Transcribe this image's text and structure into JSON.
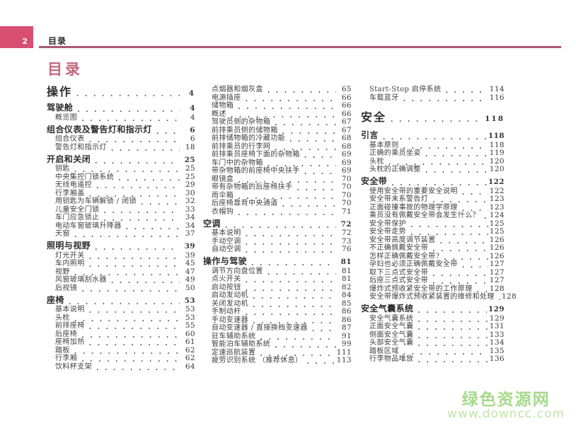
{
  "header": {
    "tab_page_number": "2",
    "header_label": "目录",
    "page_title": "目录"
  },
  "colors": {
    "accent": "#d84f72",
    "rule": "#a85a73",
    "title_pink": "#c4677f",
    "watermark_green": "#a6d98b",
    "watermark_green_light": "#bfe5a8"
  },
  "toc": {
    "columns": [
      {
        "entries": [
          {
            "label": "操作",
            "page": "4",
            "level": "part"
          },
          {
            "label": "驾驶舱",
            "page": "4",
            "level": "section"
          },
          {
            "label": "概览图",
            "page": "4",
            "level": "sub"
          },
          {
            "label": "组合仪表及警告灯和指示灯",
            "page": "6",
            "level": "section"
          },
          {
            "label": "组合仪表",
            "page": "6",
            "level": "sub"
          },
          {
            "label": "警告灯和指示灯",
            "page": "18",
            "level": "sub"
          },
          {
            "label": "开启和关闭",
            "page": "25",
            "level": "section"
          },
          {
            "label": "钥匙",
            "page": "25",
            "level": "sub"
          },
          {
            "label": "中央集控门锁系统",
            "page": "25",
            "level": "sub"
          },
          {
            "label": "无线电遥控",
            "page": "29",
            "level": "sub"
          },
          {
            "label": "行李厢盖",
            "page": "30",
            "level": "sub"
          },
          {
            "label": "用钥匙为车辆解锁 / 闭锁",
            "page": "32",
            "level": "sub"
          },
          {
            "label": "儿童安全门锁",
            "page": "33",
            "level": "sub"
          },
          {
            "label": "车门应急锁止",
            "page": "34",
            "level": "sub"
          },
          {
            "label": "电动车窗玻璃升降器",
            "page": "34",
            "level": "sub"
          },
          {
            "label": "天窗",
            "page": "37",
            "level": "sub"
          },
          {
            "label": "照明与视野",
            "page": "39",
            "level": "section"
          },
          {
            "label": "灯光开关",
            "page": "39",
            "level": "sub"
          },
          {
            "label": "车内照明",
            "page": "45",
            "level": "sub"
          },
          {
            "label": "视野",
            "page": "47",
            "level": "sub"
          },
          {
            "label": "风窗玻璃刮水器",
            "page": "49",
            "level": "sub"
          },
          {
            "label": "后视镜",
            "page": "50",
            "level": "sub"
          },
          {
            "label": "座椅",
            "page": "53",
            "level": "section"
          },
          {
            "label": "基本说明",
            "page": "53",
            "level": "sub"
          },
          {
            "label": "头枕",
            "page": "53",
            "level": "sub"
          },
          {
            "label": "前排座椅",
            "page": "55",
            "level": "sub"
          },
          {
            "label": "后座椅",
            "page": "60",
            "level": "sub"
          },
          {
            "label": "座椅加热",
            "page": "61",
            "level": "sub"
          },
          {
            "label": "踏板",
            "page": "62",
            "level": "sub"
          },
          {
            "label": "行李厢",
            "page": "62",
            "level": "sub"
          },
          {
            "label": "饮料杯支架",
            "page": "64",
            "level": "sub"
          }
        ]
      },
      {
        "entries": [
          {
            "label": "点烟器和烟灰盒",
            "page": "65",
            "level": "sub"
          },
          {
            "label": "电源插座",
            "page": "66",
            "level": "sub"
          },
          {
            "label": "储物箱",
            "page": "66",
            "level": "sub"
          },
          {
            "label": "概述",
            "page": "66",
            "level": "sub"
          },
          {
            "label": "驾驶员侧的杂物箱",
            "page": "67",
            "level": "sub"
          },
          {
            "label": "前排乘员侧的储物箱",
            "page": "67",
            "level": "sub"
          },
          {
            "label": "前排储物箱的冷藏功能",
            "page": "68",
            "level": "sub"
          },
          {
            "label": "前排乘员的行李网",
            "page": "68",
            "level": "sub"
          },
          {
            "label": "前排乘员座椅下面的杂物箱",
            "page": "69",
            "level": "sub"
          },
          {
            "label": "车门中的杂物箱",
            "page": "69",
            "level": "sub"
          },
          {
            "label": "带杂物箱的前座椅中央扶手",
            "page": "69",
            "level": "sub"
          },
          {
            "label": "眼镜盒",
            "page": "70",
            "level": "sub"
          },
          {
            "label": "带有杂物箱的后座椅扶手",
            "page": "70",
            "level": "sub"
          },
          {
            "label": "雨伞箱",
            "page": "70",
            "level": "sub"
          },
          {
            "label": "后座椅靠背中央通道",
            "page": "70",
            "level": "sub"
          },
          {
            "label": "衣帽钩",
            "page": "71",
            "level": "sub"
          },
          {
            "label": "空调",
            "page": "72",
            "level": "section"
          },
          {
            "label": "基本说明",
            "page": "72",
            "level": "sub"
          },
          {
            "label": "手动空调",
            "page": "73",
            "level": "sub"
          },
          {
            "label": "自动空调",
            "page": "76",
            "level": "sub"
          },
          {
            "label": "操作与驾驶",
            "page": "81",
            "level": "section"
          },
          {
            "label": "调节方向盘位置",
            "page": "81",
            "level": "sub"
          },
          {
            "label": "点火开关",
            "page": "81",
            "level": "sub"
          },
          {
            "label": "启动按钮",
            "page": "82",
            "level": "sub"
          },
          {
            "label": "启动发动机",
            "page": "84",
            "level": "sub"
          },
          {
            "label": "关闭发动机",
            "page": "85",
            "level": "sub"
          },
          {
            "label": "手制动杆",
            "page": "86",
            "level": "sub"
          },
          {
            "label": "手动变速器",
            "page": "86",
            "level": "sub"
          },
          {
            "label": "自动变速器 / 直接换档变速器",
            "page": "87",
            "level": "sub"
          },
          {
            "label": "驻车辅助系统",
            "page": "91",
            "level": "sub"
          },
          {
            "label": "智能泊车辅助系统",
            "page": "99",
            "level": "sub"
          },
          {
            "label": "定速巡航装置",
            "page": "111",
            "level": "sub"
          },
          {
            "label": "疲劳识别系统 （推荐休息）",
            "page": "113",
            "level": "sub"
          }
        ]
      },
      {
        "entries": [
          {
            "label": "Start-Stop 启停系统",
            "page": "114",
            "level": "sub"
          },
          {
            "label": "车载蓝牙",
            "page": "116",
            "level": "sub"
          },
          {
            "label": "安全",
            "page": "118",
            "level": "part"
          },
          {
            "label": "引言",
            "page": "118",
            "level": "section"
          },
          {
            "label": "基本原则",
            "page": "118",
            "level": "sub"
          },
          {
            "label": "正确的乘员坐姿",
            "page": "119",
            "level": "sub"
          },
          {
            "label": "头枕",
            "page": "120",
            "level": "sub"
          },
          {
            "label": "头枕的正确调整",
            "page": "120",
            "level": "sub"
          },
          {
            "label": "安全带",
            "page": "122",
            "level": "section"
          },
          {
            "label": "使用安全带的重要安全说明",
            "page": "122",
            "level": "sub"
          },
          {
            "label": "安全带未系警告灯",
            "page": "123",
            "level": "sub"
          },
          {
            "label": "正面碰撞事故的物理学原理",
            "page": "123",
            "level": "sub"
          },
          {
            "label": "乘员没有佩戴安全带会发生什么？",
            "page": "124",
            "level": "sub"
          },
          {
            "label": "安全带保护",
            "page": "125",
            "level": "sub"
          },
          {
            "label": "安全带走势",
            "page": "125",
            "level": "sub"
          },
          {
            "label": "安全带高度调节装置",
            "page": "126",
            "level": "sub"
          },
          {
            "label": "不正确佩戴安全带",
            "page": "126",
            "level": "sub"
          },
          {
            "label": "怎样正确佩戴安全带?",
            "page": "126",
            "level": "sub"
          },
          {
            "label": "孕妇也必须正确佩戴安全带",
            "page": "127",
            "level": "sub"
          },
          {
            "label": "取下三点式安全带",
            "page": "127",
            "level": "sub"
          },
          {
            "label": "后座三点式安全带",
            "page": "127",
            "level": "sub"
          },
          {
            "label": "爆炸式预收紧安全带的工作原理",
            "page": "128",
            "level": "sub"
          },
          {
            "label": "安全带爆炸式预收紧装置的维修和处理",
            "page": "128",
            "level": "sub"
          },
          {
            "label": "安全气囊系统",
            "page": "129",
            "level": "section"
          },
          {
            "label": "安全气囊系统",
            "page": "129",
            "level": "sub"
          },
          {
            "label": "正面安全气囊",
            "page": "131",
            "level": "sub"
          },
          {
            "label": "侧面安全气囊",
            "page": "133",
            "level": "sub"
          },
          {
            "label": "头部安全气囊",
            "page": "134",
            "level": "sub"
          },
          {
            "label": "踏板区域",
            "page": "135",
            "level": "sub"
          },
          {
            "label": "行李物品堆放",
            "page": "136",
            "level": "sub"
          }
        ]
      }
    ]
  },
  "watermark": {
    "site_name": "绿色资源网",
    "site_url": "www.downcc.com"
  }
}
